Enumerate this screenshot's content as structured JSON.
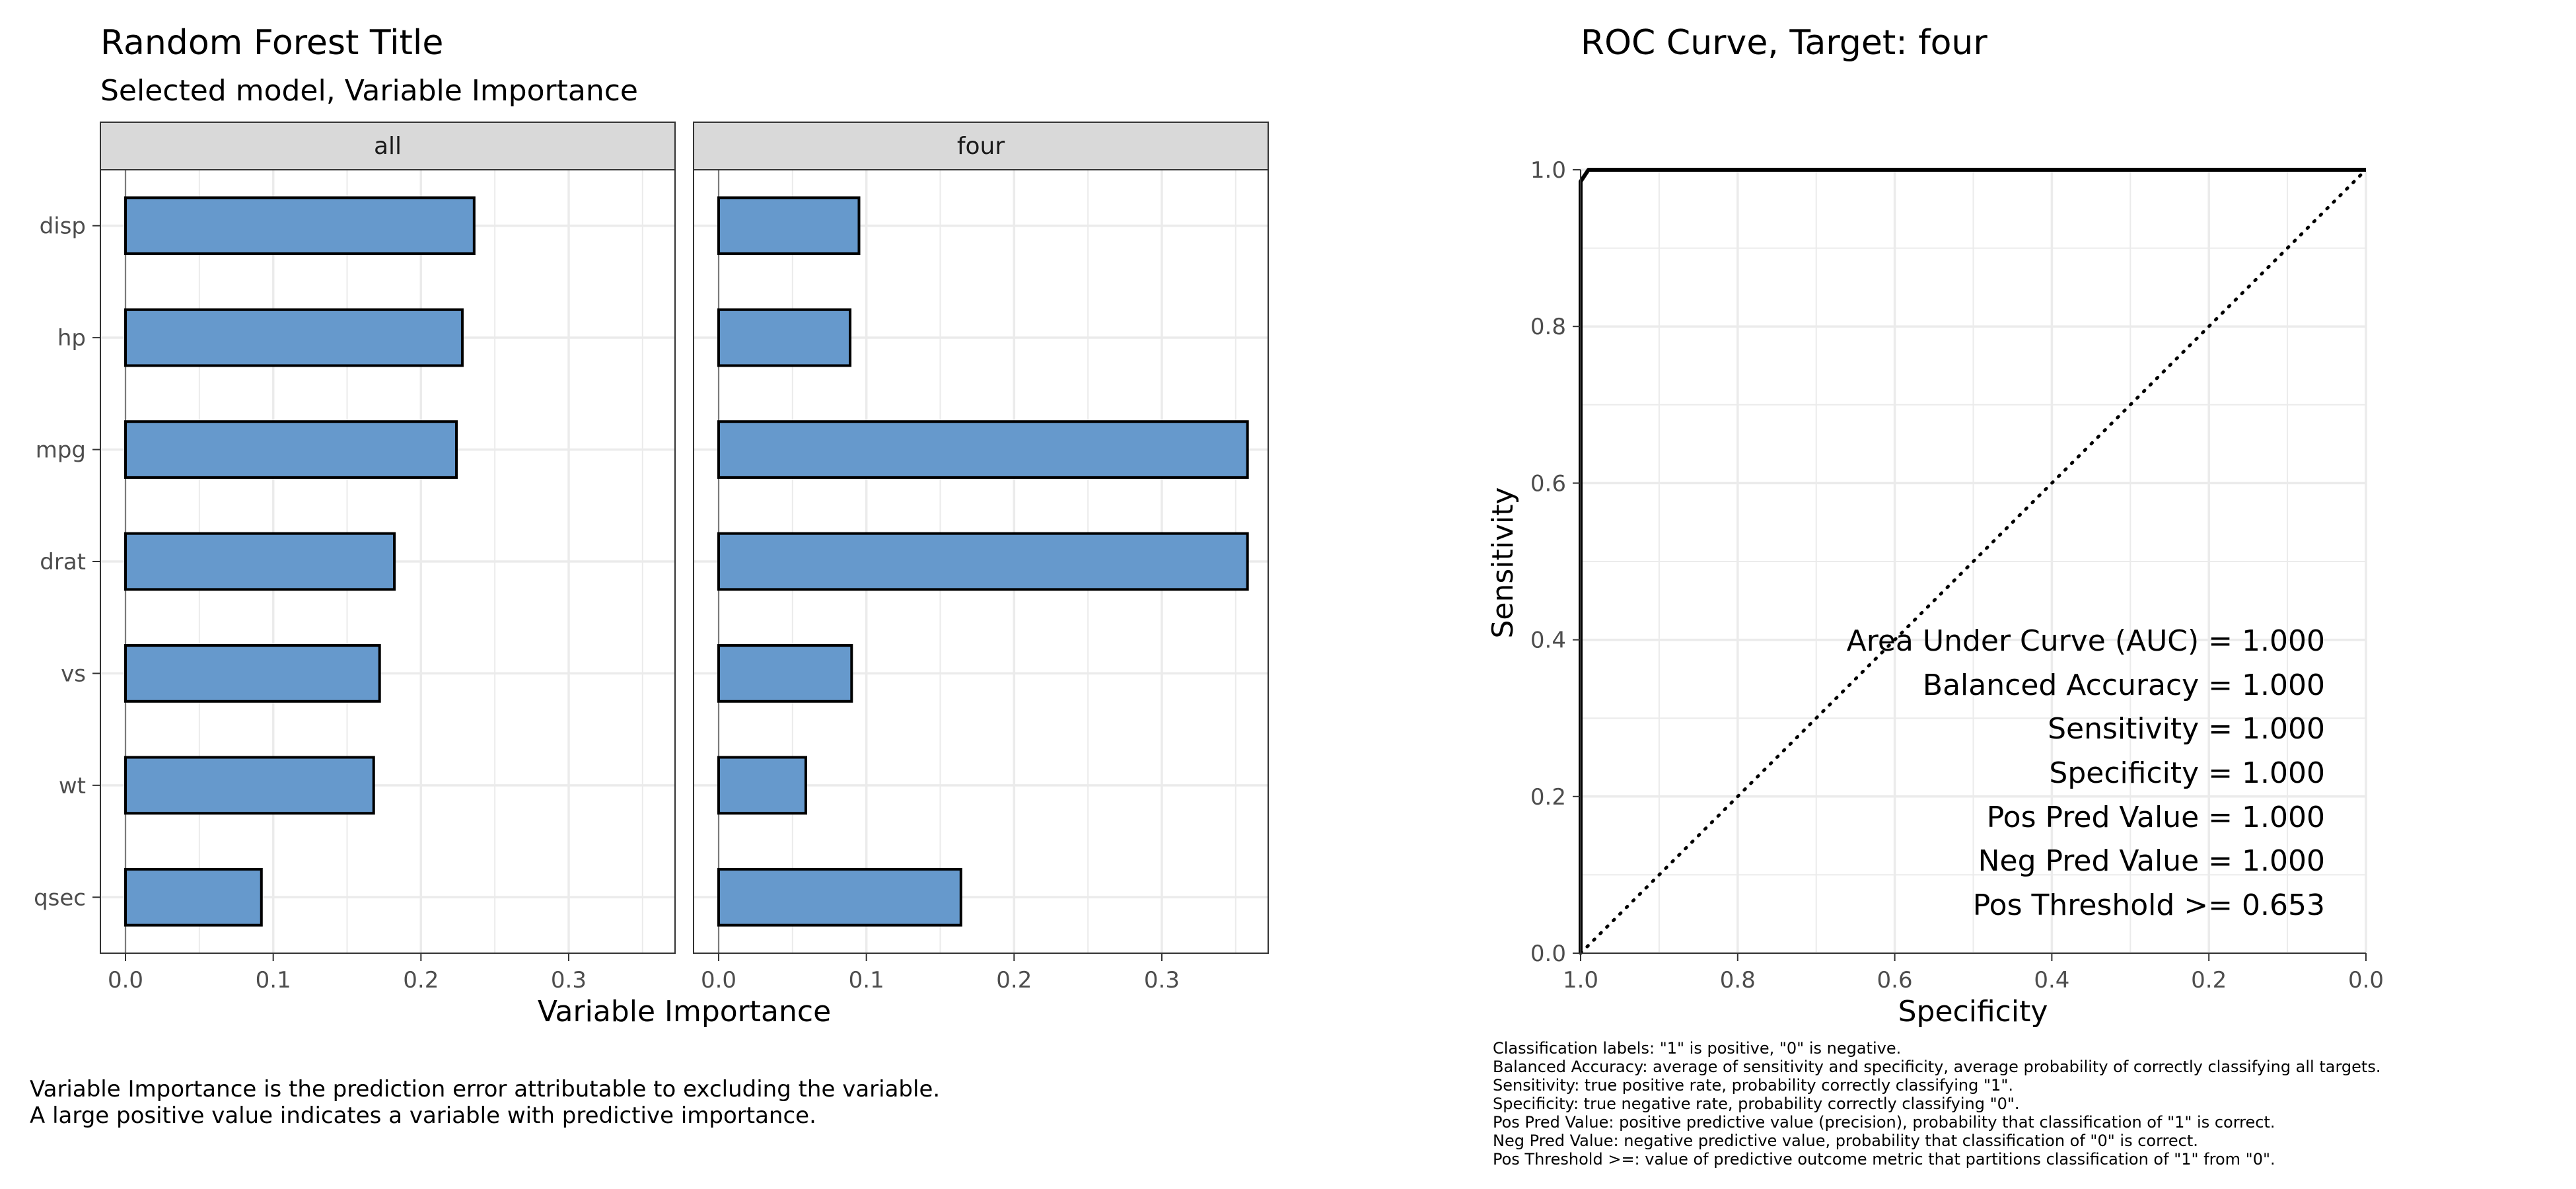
{
  "left": {
    "title": "Random Forest Title",
    "subtitle": "Selected model, Variable Importance",
    "xlabel": "Variable Importance",
    "note_lines": [
      "Variable Importance is the prediction error attributable to excluding the variable.",
      "A large positive value indicates a variable with predictive importance."
    ]
  },
  "right": {
    "title": "ROC Curve, Target:  four",
    "xlabel": "Specificity",
    "ylabel": "Sensitivity",
    "stats": [
      "Area Under Curve (AUC) = 1.000",
      "Balanced Accuracy = 1.000",
      "Sensitivity = 1.000",
      "Specificity = 1.000",
      "Pos Pred Value = 1.000",
      "Neg Pred Value = 1.000",
      "Pos Threshold >= 0.653"
    ],
    "footnotes": [
      "Classification labels:  \"1\" is positive, \"0\" is negative.",
      "Balanced Accuracy:  average of sensitivity and specificity, average probability of correctly classifying all targets.",
      "Sensitivity:  true positive rate, probability correctly classifying \"1\".",
      "Specificity:  true negative rate, probability correctly classifying \"0\".",
      "Pos Pred Value:  positive predictive value (precision), probability that classification of \"1\" is correct.",
      "Neg Pred Value:  negative predictive value, probability that classification of \"0\" is correct.",
      "Pos Threshold >=:  value of predictive outcome metric that partitions classification of \"1\" from \"0\"."
    ]
  },
  "colors": {
    "bar_fill": "#6699cc",
    "bar_stroke": "#000000",
    "strip_bg": "#d9d9d9",
    "grid": "#ebebeb",
    "panel_border": "#333333"
  },
  "chart_data": [
    {
      "type": "bar",
      "orientation": "horizontal",
      "categories": [
        "disp",
        "hp",
        "mpg",
        "drat",
        "vs",
        "wt",
        "qsec"
      ],
      "facets": [
        {
          "name": "all",
          "values": [
            0.236,
            0.228,
            0.224,
            0.182,
            0.172,
            0.168,
            0.092
          ]
        },
        {
          "name": "four",
          "values": [
            0.095,
            0.089,
            0.358,
            0.358,
            0.09,
            0.059,
            0.164
          ]
        }
      ],
      "xlim": [
        -0.017,
        0.372
      ],
      "xticks": [
        0.0,
        0.1,
        0.2,
        0.3
      ],
      "xtick_labels": [
        "0.0",
        "0.1",
        "0.2",
        "0.3"
      ],
      "xlabel": "Variable Importance",
      "grid": true
    },
    {
      "type": "line",
      "title": "ROC Curve, Target:  four",
      "xlabel": "Specificity",
      "ylabel": "Sensitivity",
      "x_reversed": true,
      "xlim": [
        1.0,
        0.0
      ],
      "ylim": [
        0.0,
        1.0
      ],
      "xticks": [
        1.0,
        0.8,
        0.6,
        0.4,
        0.2,
        0.0
      ],
      "xtick_labels": [
        "1.0",
        "0.8",
        "0.6",
        "0.4",
        "0.2",
        "0.0"
      ],
      "yticks": [
        0.0,
        0.2,
        0.4,
        0.6,
        0.8,
        1.0
      ],
      "ytick_labels": [
        "0.0",
        "0.2",
        "0.4",
        "0.6",
        "0.8",
        "1.0"
      ],
      "curve": {
        "specificity": [
          1.0,
          1.0,
          0.99,
          0.0
        ],
        "sensitivity": [
          0.0,
          0.985,
          1.0,
          1.0
        ]
      },
      "reference_line": {
        "specificity": [
          1.0,
          0.0
        ],
        "sensitivity": [
          0.0,
          1.0
        ],
        "style": "dotted"
      },
      "grid": true
    }
  ]
}
